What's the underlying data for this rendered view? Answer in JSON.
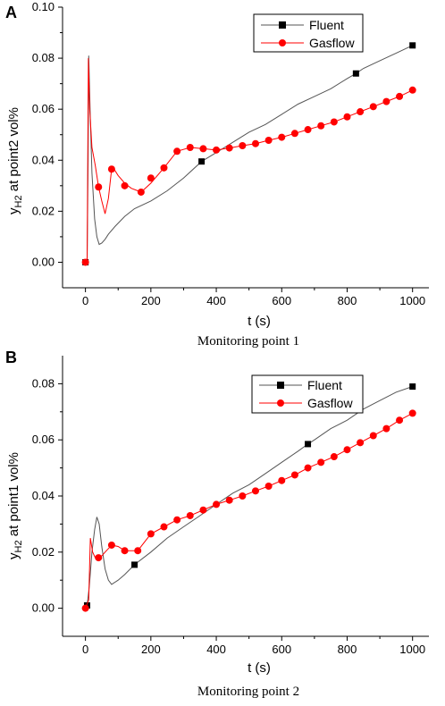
{
  "colors": {
    "fluent": "#000000",
    "fluent_line": "#555555",
    "gasflow": "#ff0000"
  },
  "chart_data": [
    {
      "type": "line",
      "panel": "A",
      "caption": "Monitoring point 1",
      "xlabel": "t (s)",
      "ylabel": "y",
      "ylabel_sub": "H2",
      "ylabel_rest": " at point2 vol%",
      "xlim": [
        -70,
        1050
      ],
      "ylim": [
        -0.01,
        0.1
      ],
      "xticks": [
        0,
        200,
        400,
        600,
        800,
        1000
      ],
      "yticks": [
        0.0,
        0.02,
        0.04,
        0.06,
        0.08,
        0.1
      ],
      "ytick_labels": [
        "0.00",
        "0.02",
        "0.04",
        "0.06",
        "0.08",
        "0.10"
      ],
      "legend_position": "top-right",
      "series": [
        {
          "name": "Fluent",
          "marker": "square",
          "line": [
            [
              0,
              0
            ],
            [
              5,
              0
            ],
            [
              8,
              0.04
            ],
            [
              10,
              0.081
            ],
            [
              14,
              0.06
            ],
            [
              20,
              0.035
            ],
            [
              28,
              0.017
            ],
            [
              35,
              0.01
            ],
            [
              42,
              0.007
            ],
            [
              50,
              0.0075
            ],
            [
              60,
              0.009
            ],
            [
              70,
              0.011
            ],
            [
              90,
              0.014
            ],
            [
              120,
              0.018
            ],
            [
              150,
              0.021
            ],
            [
              200,
              0.024
            ],
            [
              250,
              0.028
            ],
            [
              300,
              0.033
            ],
            [
              355,
              0.0395
            ],
            [
              400,
              0.043
            ],
            [
              450,
              0.047
            ],
            [
              500,
              0.051
            ],
            [
              550,
              0.054
            ],
            [
              600,
              0.058
            ],
            [
              650,
              0.062
            ],
            [
              700,
              0.065
            ],
            [
              750,
              0.068
            ],
            [
              800,
              0.072
            ],
            [
              827,
              0.074
            ],
            [
              850,
              0.076
            ],
            [
              900,
              0.079
            ],
            [
              950,
              0.082
            ],
            [
              1000,
              0.085
            ]
          ],
          "markers": [
            [
              0,
              0
            ],
            [
              355,
              0.0395
            ],
            [
              827,
              0.074
            ],
            [
              1000,
              0.085
            ]
          ]
        },
        {
          "name": "Gasflow",
          "marker": "circle",
          "line": [
            [
              0,
              0
            ],
            [
              5,
              0
            ],
            [
              9,
              0.08
            ],
            [
              13,
              0.06
            ],
            [
              20,
              0.045
            ],
            [
              30,
              0.038
            ],
            [
              40,
              0.0295
            ],
            [
              50,
              0.024
            ],
            [
              60,
              0.019
            ],
            [
              70,
              0.025
            ],
            [
              80,
              0.0365
            ],
            [
              90,
              0.036
            ],
            [
              100,
              0.034
            ],
            [
              120,
              0.031
            ],
            [
              140,
              0.029
            ],
            [
              160,
              0.028
            ],
            [
              170,
              0.0275
            ],
            [
              200,
              0.031
            ],
            [
              240,
              0.037
            ],
            [
              280,
              0.0435
            ],
            [
              320,
              0.045
            ],
            [
              360,
              0.0445
            ],
            [
              400,
              0.044
            ],
            [
              440,
              0.0448
            ],
            [
              480,
              0.0457
            ],
            [
              520,
              0.0465
            ],
            [
              560,
              0.0478
            ],
            [
              600,
              0.049
            ],
            [
              640,
              0.0505
            ],
            [
              680,
              0.052
            ],
            [
              720,
              0.0535
            ],
            [
              760,
              0.055
            ],
            [
              800,
              0.057
            ],
            [
              840,
              0.059
            ],
            [
              880,
              0.061
            ],
            [
              920,
              0.063
            ],
            [
              960,
              0.065
            ],
            [
              1000,
              0.0675
            ]
          ],
          "markers": [
            [
              0,
              0
            ],
            [
              40,
              0.0295
            ],
            [
              80,
              0.0365
            ],
            [
              120,
              0.03
            ],
            [
              170,
              0.0275
            ],
            [
              200,
              0.033
            ],
            [
              240,
              0.037
            ],
            [
              280,
              0.0435
            ],
            [
              320,
              0.045
            ],
            [
              360,
              0.0445
            ],
            [
              400,
              0.044
            ],
            [
              440,
              0.0448
            ],
            [
              480,
              0.0457
            ],
            [
              520,
              0.0465
            ],
            [
              560,
              0.0478
            ],
            [
              600,
              0.049
            ],
            [
              640,
              0.0505
            ],
            [
              680,
              0.052
            ],
            [
              720,
              0.0535
            ],
            [
              760,
              0.055
            ],
            [
              800,
              0.057
            ],
            [
              840,
              0.059
            ],
            [
              880,
              0.061
            ],
            [
              920,
              0.063
            ],
            [
              960,
              0.065
            ],
            [
              1000,
              0.0675
            ]
          ]
        }
      ]
    },
    {
      "type": "line",
      "panel": "B",
      "caption": "Monitoring point 2",
      "xlabel": "t (s)",
      "ylabel": "y",
      "ylabel_sub": "H2",
      "ylabel_rest": " at point1 vol%",
      "xlim": [
        -70,
        1050
      ],
      "ylim": [
        -0.01,
        0.09
      ],
      "xticks": [
        0,
        200,
        400,
        600,
        800,
        1000
      ],
      "yticks": [
        0.0,
        0.02,
        0.04,
        0.06,
        0.08
      ],
      "ytick_labels": [
        "0.00",
        "0.02",
        "0.04",
        "0.06",
        "0.08"
      ],
      "legend_position": "top-right",
      "series": [
        {
          "name": "Fluent",
          "marker": "square",
          "line": [
            [
              0,
              0
            ],
            [
              5,
              0.001
            ],
            [
              12,
              0.008
            ],
            [
              20,
              0.02
            ],
            [
              28,
              0.028
            ],
            [
              35,
              0.0325
            ],
            [
              42,
              0.03
            ],
            [
              50,
              0.022
            ],
            [
              60,
              0.014
            ],
            [
              70,
              0.01
            ],
            [
              80,
              0.0085
            ],
            [
              100,
              0.01
            ],
            [
              120,
              0.012
            ],
            [
              150,
              0.0155
            ],
            [
              200,
              0.02
            ],
            [
              250,
              0.025
            ],
            [
              300,
              0.029
            ],
            [
              350,
              0.033
            ],
            [
              400,
              0.037
            ],
            [
              450,
              0.041
            ],
            [
              500,
              0.044
            ],
            [
              550,
              0.048
            ],
            [
              600,
              0.052
            ],
            [
              650,
              0.056
            ],
            [
              680,
              0.0585
            ],
            [
              700,
              0.06
            ],
            [
              750,
              0.064
            ],
            [
              800,
              0.067
            ],
            [
              850,
              0.071
            ],
            [
              900,
              0.074
            ],
            [
              950,
              0.077
            ],
            [
              1000,
              0.079
            ]
          ],
          "markers": [
            [
              5,
              0.001
            ],
            [
              150,
              0.0155
            ],
            [
              680,
              0.0585
            ],
            [
              1000,
              0.079
            ]
          ]
        },
        {
          "name": "Gasflow",
          "marker": "circle",
          "line": [
            [
              0,
              0
            ],
            [
              10,
              0.003
            ],
            [
              15,
              0.025
            ],
            [
              22,
              0.02
            ],
            [
              30,
              0.018
            ],
            [
              45,
              0.018
            ],
            [
              60,
              0.02
            ],
            [
              80,
              0.0225
            ],
            [
              100,
              0.022
            ],
            [
              120,
              0.0205
            ],
            [
              160,
              0.0205
            ],
            [
              200,
              0.0265
            ],
            [
              240,
              0.029
            ],
            [
              280,
              0.0315
            ],
            [
              320,
              0.033
            ],
            [
              360,
              0.035
            ],
            [
              400,
              0.037
            ],
            [
              440,
              0.0385
            ],
            [
              480,
              0.04
            ],
            [
              520,
              0.0418
            ],
            [
              560,
              0.0435
            ],
            [
              600,
              0.0455
            ],
            [
              640,
              0.0475
            ],
            [
              680,
              0.05
            ],
            [
              720,
              0.052
            ],
            [
              760,
              0.054
            ],
            [
              800,
              0.0565
            ],
            [
              840,
              0.059
            ],
            [
              880,
              0.0615
            ],
            [
              920,
              0.064
            ],
            [
              960,
              0.067
            ],
            [
              1000,
              0.0695
            ]
          ],
          "markers": [
            [
              0,
              0
            ],
            [
              40,
              0.018
            ],
            [
              80,
              0.0225
            ],
            [
              120,
              0.0205
            ],
            [
              160,
              0.0205
            ],
            [
              200,
              0.0265
            ],
            [
              240,
              0.029
            ],
            [
              280,
              0.0315
            ],
            [
              320,
              0.033
            ],
            [
              360,
              0.035
            ],
            [
              400,
              0.037
            ],
            [
              440,
              0.0385
            ],
            [
              480,
              0.04
            ],
            [
              520,
              0.0418
            ],
            [
              560,
              0.0435
            ],
            [
              600,
              0.0455
            ],
            [
              640,
              0.0475
            ],
            [
              680,
              0.05
            ],
            [
              720,
              0.052
            ],
            [
              760,
              0.054
            ],
            [
              800,
              0.0565
            ],
            [
              840,
              0.059
            ],
            [
              880,
              0.0615
            ],
            [
              920,
              0.064
            ],
            [
              960,
              0.067
            ],
            [
              1000,
              0.0695
            ]
          ]
        }
      ]
    }
  ]
}
